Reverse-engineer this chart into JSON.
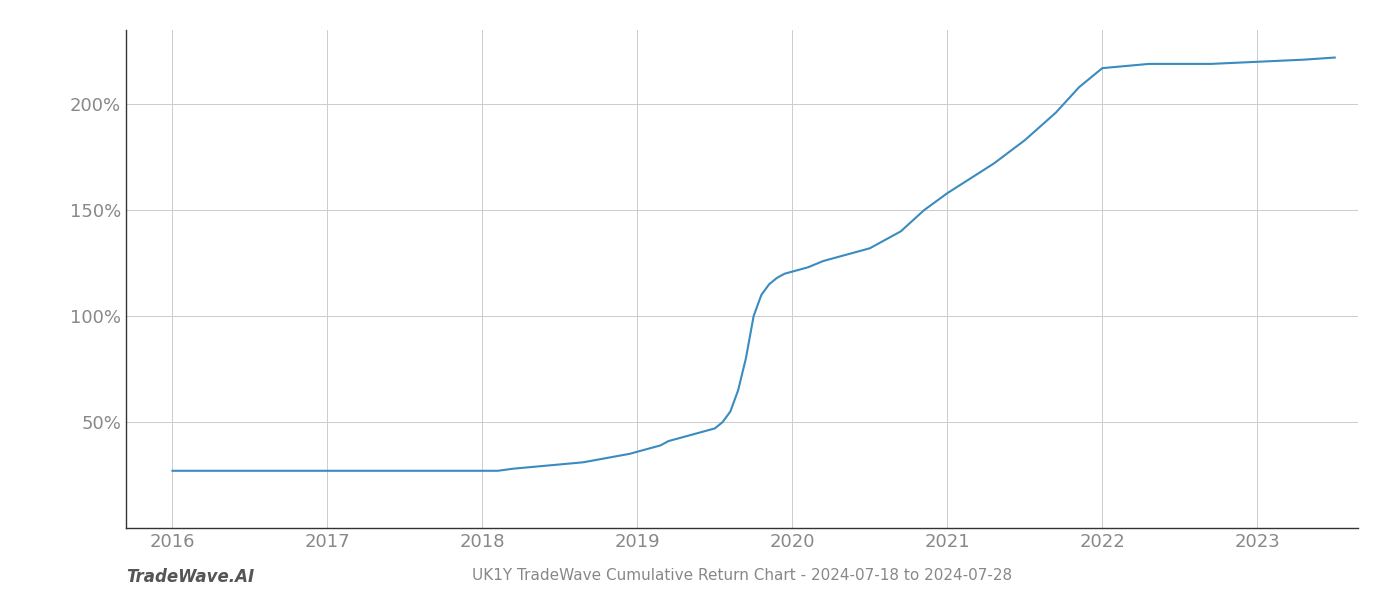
{
  "title": "UK1Y TradeWave Cumulative Return Chart - 2024-07-18 to 2024-07-28",
  "watermark": "TradeWave.AI",
  "line_color": "#3a8bbf",
  "background_color": "#ffffff",
  "grid_color": "#cccccc",
  "text_color": "#888888",
  "watermark_color": "#555555",
  "x_values": [
    2016.0,
    2016.15,
    2016.3,
    2016.5,
    2016.7,
    2016.85,
    2017.0,
    2017.2,
    2017.4,
    2017.6,
    2017.8,
    2018.0,
    2018.1,
    2018.2,
    2018.35,
    2018.5,
    2018.65,
    2018.8,
    2018.95,
    2019.0,
    2019.05,
    2019.1,
    2019.15,
    2019.2,
    2019.3,
    2019.4,
    2019.5,
    2019.55,
    2019.6,
    2019.65,
    2019.7,
    2019.75,
    2019.8,
    2019.85,
    2019.9,
    2019.95,
    2020.0,
    2020.05,
    2020.1,
    2020.2,
    2020.3,
    2020.4,
    2020.5,
    2020.6,
    2020.7,
    2020.85,
    2021.0,
    2021.15,
    2021.3,
    2021.5,
    2021.7,
    2021.85,
    2022.0,
    2022.15,
    2022.3,
    2022.5,
    2022.7,
    2023.0,
    2023.3,
    2023.5
  ],
  "y_values": [
    27,
    27,
    27,
    27,
    27,
    27,
    27,
    27,
    27,
    27,
    27,
    27,
    27,
    28,
    29,
    30,
    31,
    33,
    35,
    36,
    37,
    38,
    39,
    41,
    43,
    45,
    47,
    50,
    55,
    65,
    80,
    100,
    110,
    115,
    118,
    120,
    121,
    122,
    123,
    126,
    128,
    130,
    132,
    136,
    140,
    150,
    158,
    165,
    172,
    183,
    196,
    208,
    217,
    218,
    219,
    219,
    219,
    220,
    221,
    222
  ],
  "xlim": [
    2015.7,
    2023.65
  ],
  "ylim": [
    0,
    235
  ],
  "yticks": [
    50,
    100,
    150,
    200
  ],
  "ytick_labels": [
    "50%",
    "100%",
    "150%",
    "200%"
  ],
  "xticks": [
    2016,
    2017,
    2018,
    2019,
    2020,
    2021,
    2022,
    2023
  ],
  "line_width": 1.5,
  "figsize": [
    14.0,
    6.0
  ],
  "dpi": 100,
  "left_spine_color": "#333333",
  "bottom_spine_color": "#333333"
}
